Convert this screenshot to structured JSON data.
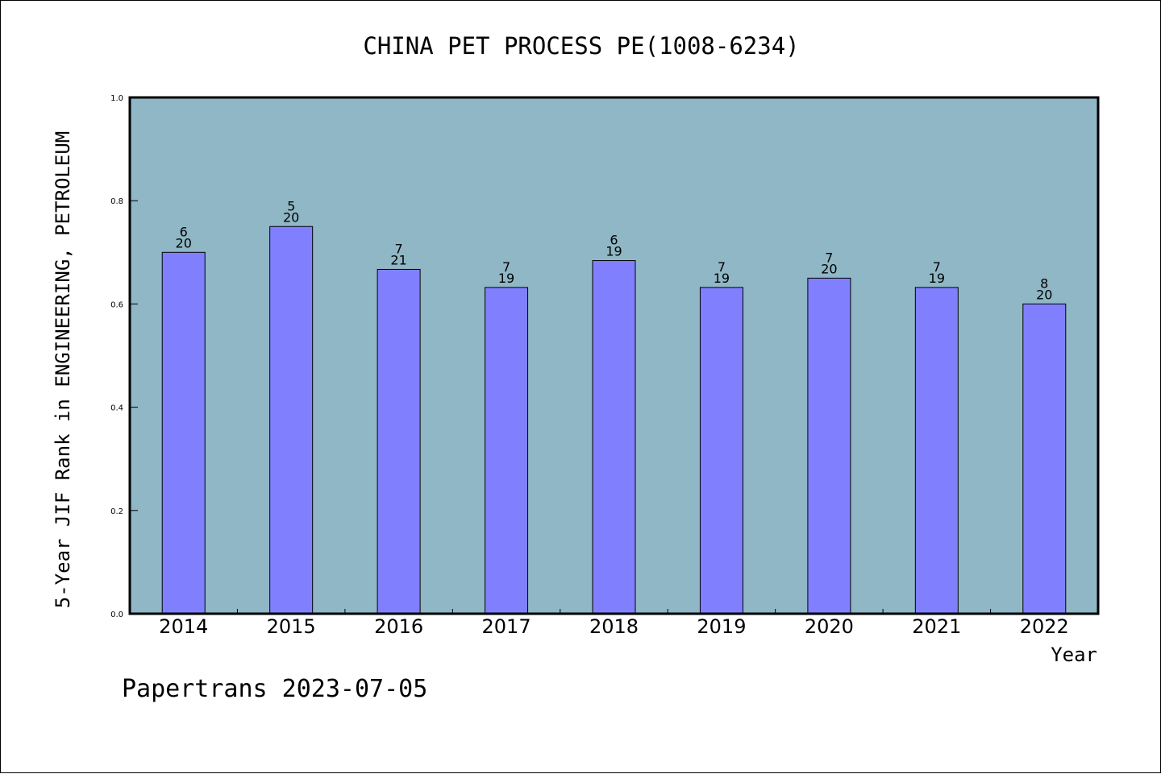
{
  "chart_data": {
    "type": "bar",
    "title": "CHINA PET PROCESS PE(1008-6234)",
    "xlabel": "Year",
    "ylabel": "5-Year JIF Rank in ENGINEERING, PETROLEUM",
    "categories": [
      "2014",
      "2015",
      "2016",
      "2017",
      "2018",
      "2019",
      "2020",
      "2021",
      "2022"
    ],
    "values": [
      0.7,
      0.75,
      0.667,
      0.632,
      0.684,
      0.632,
      0.65,
      0.632,
      0.6
    ],
    "bar_labels_top": [
      "6",
      "5",
      "7",
      "7",
      "6",
      "7",
      "7",
      "7",
      "8"
    ],
    "bar_labels_bottom": [
      "20",
      "20",
      "21",
      "19",
      "19",
      "19",
      "20",
      "19",
      "20"
    ],
    "ylim": [
      0,
      1
    ],
    "yticks": [
      "0.0",
      "0.2",
      "0.4",
      "0.6",
      "0.8",
      "1.0"
    ],
    "grid": false,
    "colors": {
      "plot_background": "#8fb7c5",
      "bar_fill": "#8080ff",
      "bar_stroke": "#000000"
    }
  },
  "footer": {
    "credit": "Papertrans 2023-07-05"
  }
}
